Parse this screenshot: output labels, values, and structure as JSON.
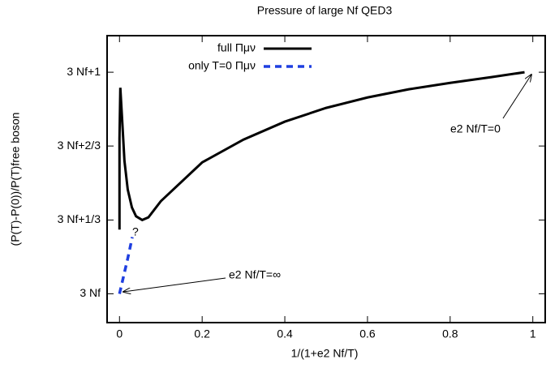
{
  "chart_data": {
    "type": "line",
    "title": "Pressure of large Nf QED3",
    "x_label": "1/(1+e2 Nf/T)",
    "y_label": "(P(T)-P(0))/P(T)free boson",
    "xlim": [
      -0.03,
      1.03
    ],
    "ylim": [
      -0.13,
      1.165
    ],
    "xticks": [
      0,
      0.2,
      0.4,
      0.6,
      0.8,
      1
    ],
    "yticks": [
      {
        "value": 0,
        "label": "3 Nf"
      },
      {
        "value": 0.333,
        "label": "3 Nf+1/3"
      },
      {
        "value": 0.667,
        "label": "3 Nf+2/3"
      },
      {
        "value": 1,
        "label": "3 Nf+1"
      }
    ],
    "legend": "top-left",
    "series": [
      {
        "name": "full Πμν",
        "color": "#000000",
        "dashed": false,
        "x": [
          0,
          0,
          0.002,
          0.006,
          0.012,
          0.02,
          0.03,
          0.04,
          0.055,
          0.07,
          0.1,
          0.2,
          0.3,
          0.4,
          0.5,
          0.6,
          0.7,
          0.8,
          0.9,
          0.98
        ],
        "values": [
          0.29,
          0.7,
          0.93,
          0.8,
          0.6,
          0.47,
          0.39,
          0.35,
          0.333,
          0.345,
          0.418,
          0.593,
          0.696,
          0.777,
          0.839,
          0.886,
          0.923,
          0.952,
          0.978,
          1.0
        ]
      },
      {
        "name": "only T=0 Πμν",
        "color": "#1f3fe0",
        "dashed": true,
        "x": [
          0,
          0.01,
          0.02,
          0.031
        ],
        "values": [
          0,
          0.08,
          0.16,
          0.256
        ]
      }
    ],
    "annotations": [
      "?",
      "e2 Nf/T=∞",
      "e2 Nf/T=0"
    ]
  }
}
